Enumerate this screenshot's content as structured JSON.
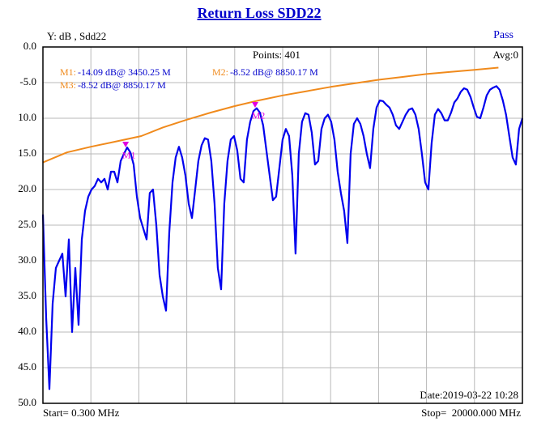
{
  "chart_data": {
    "type": "line",
    "title": "Return Loss  SDD22",
    "y_label": "Y: dB , Sdd22",
    "status": "Pass",
    "points": "Points: 401",
    "avg": "Avg:0",
    "date": "Date:2019-03-22 10:28",
    "start": "Start= 0.300 MHz",
    "stop": "Stop=  20000.000 MHz",
    "xlim": [
      0.3,
      20000
    ],
    "ylim": [
      -50,
      0
    ],
    "yticks": [
      {
        "value": 0,
        "label": "0.0"
      },
      {
        "value": -5,
        "label": "-5.0"
      },
      {
        "value": -10,
        "label": "10.0"
      },
      {
        "value": -15,
        "label": "15.0"
      },
      {
        "value": -20,
        "label": "20.0"
      },
      {
        "value": -25,
        "label": "25.0"
      },
      {
        "value": -30,
        "label": "30.0"
      },
      {
        "value": -35,
        "label": "35.0"
      },
      {
        "value": -40,
        "label": "40.0"
      },
      {
        "value": -45,
        "label": "45.0"
      },
      {
        "value": -50,
        "label": "50.0"
      }
    ],
    "grid": true,
    "readouts": [
      {
        "label": "M1:",
        "text": "-14.09 dB@ 3450.25 M"
      },
      {
        "label": "M2:",
        "text": "-8.52 dB@ 8850.17 M"
      },
      {
        "label": "M3:",
        "text": "-8.52 dB@ 8850.17 M"
      }
    ],
    "markers": [
      {
        "label": "M1",
        "x": 3450.25,
        "y": -14.09
      },
      {
        "label": "M2",
        "x": 8850.17,
        "y": -8.52
      }
    ],
    "series": [
      {
        "color": "#0000ee",
        "x": [
          0.3,
          135,
          270,
          405,
          540,
          676,
          811,
          946,
          1081,
          1216,
          1351,
          1486,
          1621,
          1756,
          1891,
          2027,
          2162,
          2297,
          2432,
          2567,
          2702,
          2837,
          2972,
          3107,
          3242,
          3378,
          3513,
          3648,
          3783,
          3918,
          4053,
          4188,
          4323,
          4458,
          4593,
          4729,
          4864,
          4999,
          5134,
          5269,
          5404,
          5539,
          5674,
          5809,
          5944,
          6080,
          6215,
          6350,
          6485,
          6620,
          6755,
          6890,
          7025,
          7160,
          7295,
          7431,
          7566,
          7701,
          7836,
          7971,
          8106,
          8241,
          8376,
          8511,
          8646,
          8782,
          8917,
          9052,
          9187,
          9322,
          9457,
          9592,
          9727,
          9862,
          9997,
          10133,
          10268,
          10403,
          10538,
          10673,
          10808,
          10943,
          11078,
          11213,
          11348,
          11484,
          11619,
          11754,
          11889,
          12024,
          12159,
          12294,
          12429,
          12564,
          12699,
          12835,
          12970,
          13105,
          13240,
          13375,
          13510,
          13645,
          13780,
          13915,
          14050,
          14186,
          14321,
          14456,
          14591,
          14726,
          14861,
          14996,
          15131,
          15266,
          15401,
          15537,
          15672,
          15807,
          15942,
          16077,
          16212,
          16347,
          16482,
          16617,
          16752,
          16888,
          17023,
          17158,
          17293,
          17428,
          17563,
          17698,
          17833,
          17968,
          18103,
          18239,
          18374,
          18509,
          18644,
          18779,
          18914,
          19049,
          19184,
          19319,
          19454,
          19590,
          19725,
          19860,
          20000
        ],
        "values": [
          -23.5,
          -38,
          -48,
          -36,
          -31,
          -30,
          -29,
          -35,
          -27,
          -40,
          -31,
          -39,
          -27,
          -23,
          -21,
          -20,
          -19.5,
          -18.5,
          -19,
          -18.5,
          -20,
          -17.5,
          -17.5,
          -19,
          -16,
          -15,
          -14.1,
          -14.8,
          -16.5,
          -21,
          -24,
          -25.5,
          -27,
          -20.5,
          -20,
          -25,
          -32,
          -35,
          -37,
          -26,
          -19,
          -15.5,
          -14,
          -15.5,
          -18,
          -22,
          -24,
          -20,
          -16,
          -13.8,
          -12.8,
          -13,
          -16,
          -22,
          -31,
          -34,
          -22,
          -16,
          -13,
          -12.5,
          -14.5,
          -18.5,
          -19,
          -13,
          -10.5,
          -9,
          -8.6,
          -9.2,
          -11,
          -14.5,
          -18,
          -21.5,
          -21,
          -17,
          -13,
          -11.5,
          -12.5,
          -18,
          -29,
          -15,
          -10.5,
          -9.3,
          -9.5,
          -12,
          -16.5,
          -16,
          -11.5,
          -10,
          -9.5,
          -10.5,
          -13,
          -17.5,
          -20.5,
          -23,
          -27.5,
          -15,
          -10.8,
          -10,
          -10.8,
          -12.5,
          -15,
          -17,
          -11.5,
          -8.5,
          -7.5,
          -7.6,
          -8.1,
          -8.5,
          -9.5,
          -11,
          -11.5,
          -10.5,
          -9.5,
          -8.8,
          -8.6,
          -9.5,
          -11.5,
          -15,
          -19,
          -20,
          -13.5,
          -9.5,
          -8.7,
          -9.3,
          -10.3,
          -10.3,
          -9.2,
          -7.8,
          -7.2,
          -6.3,
          -5.8,
          -6,
          -7,
          -8.5,
          -9.8,
          -10,
          -8.5,
          -6.8,
          -6,
          -5.7,
          -5.5,
          -6,
          -7.5,
          -9.5,
          -12.5,
          -15.5,
          -16.5,
          -11.5,
          -10
        ]
      },
      {
        "color": "#f08a1c",
        "x": [
          0.3,
          1000,
          2000,
          3000,
          4100,
          5000,
          6000,
          7000,
          8000,
          9000,
          10000,
          11000,
          12000,
          13000,
          14000,
          15000,
          16000,
          17000,
          18000,
          19000
        ],
        "values": [
          -16.2,
          -14.8,
          -14,
          -13.3,
          -12.5,
          -11.3,
          -10.2,
          -9.2,
          -8.3,
          -7.5,
          -6.8,
          -6.2,
          -5.6,
          -5.1,
          -4.6,
          -4.2,
          -3.8,
          -3.5,
          -3.2,
          -2.9
        ]
      }
    ]
  }
}
